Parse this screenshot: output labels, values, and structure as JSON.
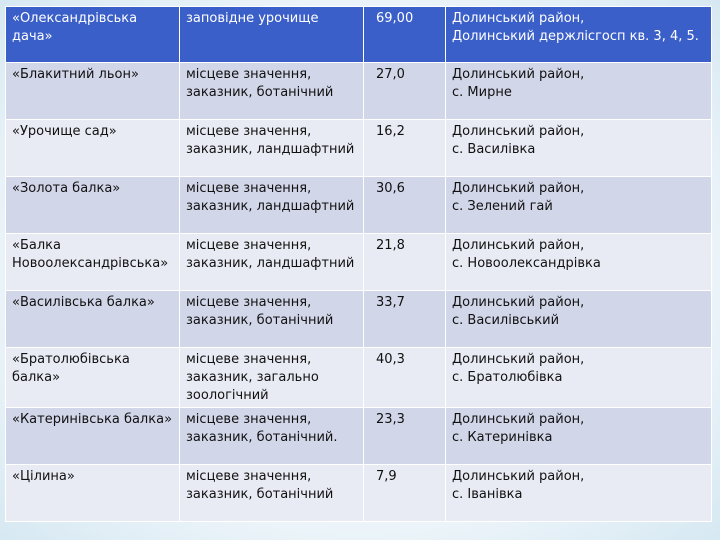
{
  "rows": [
    {
      "name": "«Олександрівська дача»",
      "type": [
        "заповідне урочище"
      ],
      "area": "69,00",
      "location": [
        "Долинський район,",
        "Долинський держлісгосп кв. 3, 4, 5."
      ]
    },
    {
      "name": "«Блакитний льон»",
      "type": [
        "місцеве значення,",
        "заказник, ботанічний"
      ],
      "area": "27,0",
      "location": [
        "Долинський район,",
        "с. Мирне"
      ]
    },
    {
      "name": "«Урочище сад»",
      "type": [
        "місцеве значення,",
        "заказник, ландшафтний"
      ],
      "area": "16,2",
      "location": [
        "Долинський район,",
        "с. Василівка"
      ]
    },
    {
      "name": "«Золота балка»",
      "type": [
        "місцеве значення,",
        "заказник, ландшафтний"
      ],
      "area": "30,6",
      "location": [
        "Долинський район,",
        "с. Зелений гай"
      ]
    },
    {
      "name": "«Балка Новоолександрівська»",
      "type": [
        "місцеве значення,",
        "заказник, ландшафтний"
      ],
      "area": "21,8",
      "location": [
        "Долинський район,",
        "с. Новоолександрівка"
      ]
    },
    {
      "name": "«Василівська балка»",
      "type": [
        "місцеве значення,",
        "заказник, ботанічний"
      ],
      "area": "33,7",
      "location": [
        "Долинський район,",
        "с. Василівський"
      ]
    },
    {
      "name": "«Братолюбівська балка»",
      "type": [
        "місцеве значення,",
        "заказник, загально",
        "зоологічний"
      ],
      "area": "40,3",
      "location": [
        "Долинський район,",
        "с. Братолюбівка"
      ]
    },
    {
      "name": "«Катеринівська балка»",
      "type": [
        "місцеве значення,",
        "заказник, ботанічний."
      ],
      "area": "23,3",
      "location": [
        "Долинський район,",
        "с. Катеринівка"
      ]
    },
    {
      "name": "«Цілина»",
      "type": [
        "місцеве значення,",
        "заказник, ботанічний"
      ],
      "area": "7,9",
      "location": [
        "Долинський район,",
        "с. Іванівка"
      ]
    }
  ]
}
